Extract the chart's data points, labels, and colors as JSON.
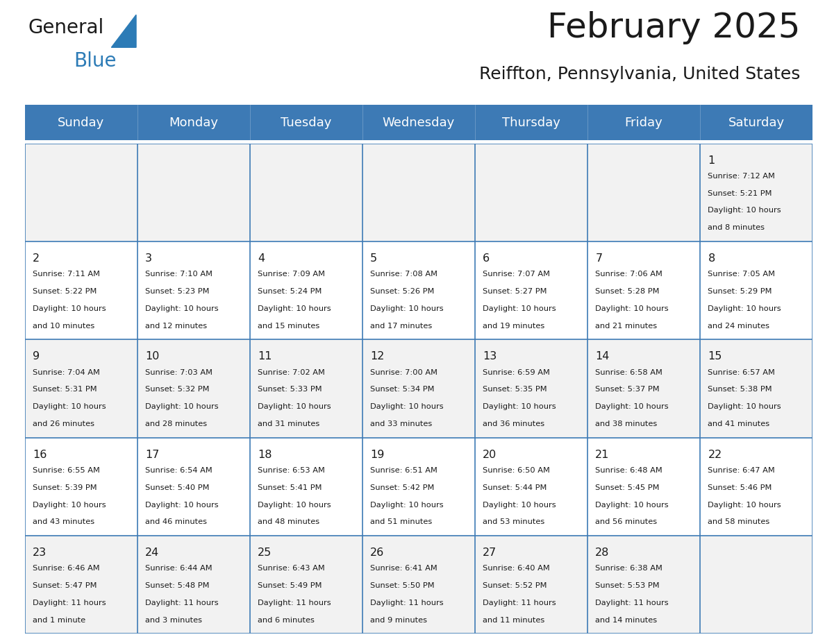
{
  "title": "February 2025",
  "subtitle": "Reiffton, Pennsylvania, United States",
  "header_bg": "#3D7AB5",
  "header_text_color": "#FFFFFF",
  "cell_bg_odd": "#F2F2F2",
  "cell_bg_even": "#FFFFFF",
  "border_color": "#3D7AB5",
  "day_headers": [
    "Sunday",
    "Monday",
    "Tuesday",
    "Wednesday",
    "Thursday",
    "Friday",
    "Saturday"
  ],
  "days": [
    {
      "day": 1,
      "col": 6,
      "row": 0,
      "sunrise": "7:12 AM",
      "sunset": "5:21 PM",
      "daylight": "10 hours and 8 minutes"
    },
    {
      "day": 2,
      "col": 0,
      "row": 1,
      "sunrise": "7:11 AM",
      "sunset": "5:22 PM",
      "daylight": "10 hours and 10 minutes"
    },
    {
      "day": 3,
      "col": 1,
      "row": 1,
      "sunrise": "7:10 AM",
      "sunset": "5:23 PM",
      "daylight": "10 hours and 12 minutes"
    },
    {
      "day": 4,
      "col": 2,
      "row": 1,
      "sunrise": "7:09 AM",
      "sunset": "5:24 PM",
      "daylight": "10 hours and 15 minutes"
    },
    {
      "day": 5,
      "col": 3,
      "row": 1,
      "sunrise": "7:08 AM",
      "sunset": "5:26 PM",
      "daylight": "10 hours and 17 minutes"
    },
    {
      "day": 6,
      "col": 4,
      "row": 1,
      "sunrise": "7:07 AM",
      "sunset": "5:27 PM",
      "daylight": "10 hours and 19 minutes"
    },
    {
      "day": 7,
      "col": 5,
      "row": 1,
      "sunrise": "7:06 AM",
      "sunset": "5:28 PM",
      "daylight": "10 hours and 21 minutes"
    },
    {
      "day": 8,
      "col": 6,
      "row": 1,
      "sunrise": "7:05 AM",
      "sunset": "5:29 PM",
      "daylight": "10 hours and 24 minutes"
    },
    {
      "day": 9,
      "col": 0,
      "row": 2,
      "sunrise": "7:04 AM",
      "sunset": "5:31 PM",
      "daylight": "10 hours and 26 minutes"
    },
    {
      "day": 10,
      "col": 1,
      "row": 2,
      "sunrise": "7:03 AM",
      "sunset": "5:32 PM",
      "daylight": "10 hours and 28 minutes"
    },
    {
      "day": 11,
      "col": 2,
      "row": 2,
      "sunrise": "7:02 AM",
      "sunset": "5:33 PM",
      "daylight": "10 hours and 31 minutes"
    },
    {
      "day": 12,
      "col": 3,
      "row": 2,
      "sunrise": "7:00 AM",
      "sunset": "5:34 PM",
      "daylight": "10 hours and 33 minutes"
    },
    {
      "day": 13,
      "col": 4,
      "row": 2,
      "sunrise": "6:59 AM",
      "sunset": "5:35 PM",
      "daylight": "10 hours and 36 minutes"
    },
    {
      "day": 14,
      "col": 5,
      "row": 2,
      "sunrise": "6:58 AM",
      "sunset": "5:37 PM",
      "daylight": "10 hours and 38 minutes"
    },
    {
      "day": 15,
      "col": 6,
      "row": 2,
      "sunrise": "6:57 AM",
      "sunset": "5:38 PM",
      "daylight": "10 hours and 41 minutes"
    },
    {
      "day": 16,
      "col": 0,
      "row": 3,
      "sunrise": "6:55 AM",
      "sunset": "5:39 PM",
      "daylight": "10 hours and 43 minutes"
    },
    {
      "day": 17,
      "col": 1,
      "row": 3,
      "sunrise": "6:54 AM",
      "sunset": "5:40 PM",
      "daylight": "10 hours and 46 minutes"
    },
    {
      "day": 18,
      "col": 2,
      "row": 3,
      "sunrise": "6:53 AM",
      "sunset": "5:41 PM",
      "daylight": "10 hours and 48 minutes"
    },
    {
      "day": 19,
      "col": 3,
      "row": 3,
      "sunrise": "6:51 AM",
      "sunset": "5:42 PM",
      "daylight": "10 hours and 51 minutes"
    },
    {
      "day": 20,
      "col": 4,
      "row": 3,
      "sunrise": "6:50 AM",
      "sunset": "5:44 PM",
      "daylight": "10 hours and 53 minutes"
    },
    {
      "day": 21,
      "col": 5,
      "row": 3,
      "sunrise": "6:48 AM",
      "sunset": "5:45 PM",
      "daylight": "10 hours and 56 minutes"
    },
    {
      "day": 22,
      "col": 6,
      "row": 3,
      "sunrise": "6:47 AM",
      "sunset": "5:46 PM",
      "daylight": "10 hours and 58 minutes"
    },
    {
      "day": 23,
      "col": 0,
      "row": 4,
      "sunrise": "6:46 AM",
      "sunset": "5:47 PM",
      "daylight": "11 hours and 1 minute"
    },
    {
      "day": 24,
      "col": 1,
      "row": 4,
      "sunrise": "6:44 AM",
      "sunset": "5:48 PM",
      "daylight": "11 hours and 3 minutes"
    },
    {
      "day": 25,
      "col": 2,
      "row": 4,
      "sunrise": "6:43 AM",
      "sunset": "5:49 PM",
      "daylight": "11 hours and 6 minutes"
    },
    {
      "day": 26,
      "col": 3,
      "row": 4,
      "sunrise": "6:41 AM",
      "sunset": "5:50 PM",
      "daylight": "11 hours and 9 minutes"
    },
    {
      "day": 27,
      "col": 4,
      "row": 4,
      "sunrise": "6:40 AM",
      "sunset": "5:52 PM",
      "daylight": "11 hours and 11 minutes"
    },
    {
      "day": 28,
      "col": 5,
      "row": 4,
      "sunrise": "6:38 AM",
      "sunset": "5:53 PM",
      "daylight": "11 hours and 14 minutes"
    }
  ],
  "logo_text1": "General",
  "logo_text2": "Blue",
  "logo_color1": "#1a1a1a",
  "logo_color2": "#2C7BB6",
  "logo_triangle_color": "#2C7BB6"
}
